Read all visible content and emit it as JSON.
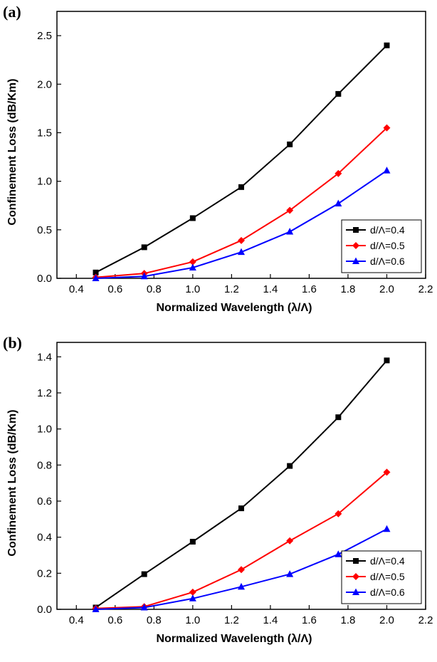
{
  "chart_data": [
    {
      "panel_label": "(a)",
      "type": "line",
      "xlabel": "Normalized Wavelength (λ/Λ)",
      "ylabel": "Confinement Loss (dB/Km)",
      "xlim": [
        0.3,
        2.2
      ],
      "ylim": [
        0,
        2.75
      ],
      "xticks": [
        "0.4",
        "0.6",
        "0.8",
        "1.0",
        "1.2",
        "1.4",
        "1.6",
        "1.8",
        "2.0",
        "2.2"
      ],
      "yticks": [
        "0.0",
        "0.5",
        "1.0",
        "1.5",
        "2.0",
        "2.5"
      ],
      "grid": false,
      "legend_position": "bottom-right",
      "x": [
        0.5,
        0.75,
        1.0,
        1.25,
        1.5,
        1.75,
        2.0
      ],
      "series": [
        {
          "name": "d/Λ=0.4",
          "color": "#000000",
          "marker": "square",
          "values": [
            0.06,
            0.32,
            0.62,
            0.94,
            1.38,
            1.9,
            2.4
          ]
        },
        {
          "name": "d/Λ=0.5",
          "color": "#ff0000",
          "marker": "diamond",
          "values": [
            0.01,
            0.05,
            0.17,
            0.39,
            0.7,
            1.08,
            1.55
          ]
        },
        {
          "name": "d/Λ=0.6",
          "color": "#0000ff",
          "marker": "triangle",
          "values": [
            0.0,
            0.02,
            0.11,
            0.27,
            0.48,
            0.77,
            1.11
          ]
        }
      ]
    },
    {
      "panel_label": "(b)",
      "type": "line",
      "xlabel": "Normalized Wavelength (λ/Λ)",
      "ylabel": "Confinement Loss (dB/Km)",
      "xlim": [
        0.3,
        2.2
      ],
      "ylim": [
        0,
        1.48
      ],
      "xticks": [
        "0.4",
        "0.6",
        "0.8",
        "1.0",
        "1.2",
        "1.4",
        "1.6",
        "1.8",
        "2.0",
        "2.2"
      ],
      "yticks": [
        "0.0",
        "0.2",
        "0.4",
        "0.6",
        "0.8",
        "1.0",
        "1.2",
        "1.4"
      ],
      "grid": false,
      "legend_position": "bottom-right",
      "x": [
        0.5,
        0.75,
        1.0,
        1.25,
        1.5,
        1.75,
        2.0
      ],
      "series": [
        {
          "name": "d/Λ=0.4",
          "color": "#000000",
          "marker": "square",
          "values": [
            0.01,
            0.195,
            0.375,
            0.56,
            0.795,
            1.065,
            1.38
          ]
        },
        {
          "name": "d/Λ=0.5",
          "color": "#ff0000",
          "marker": "diamond",
          "values": [
            0.005,
            0.015,
            0.095,
            0.22,
            0.38,
            0.53,
            0.76
          ]
        },
        {
          "name": "d/Λ=0.6",
          "color": "#0000ff",
          "marker": "triangle",
          "values": [
            0.0,
            0.01,
            0.06,
            0.125,
            0.195,
            0.305,
            0.445
          ]
        }
      ]
    }
  ]
}
